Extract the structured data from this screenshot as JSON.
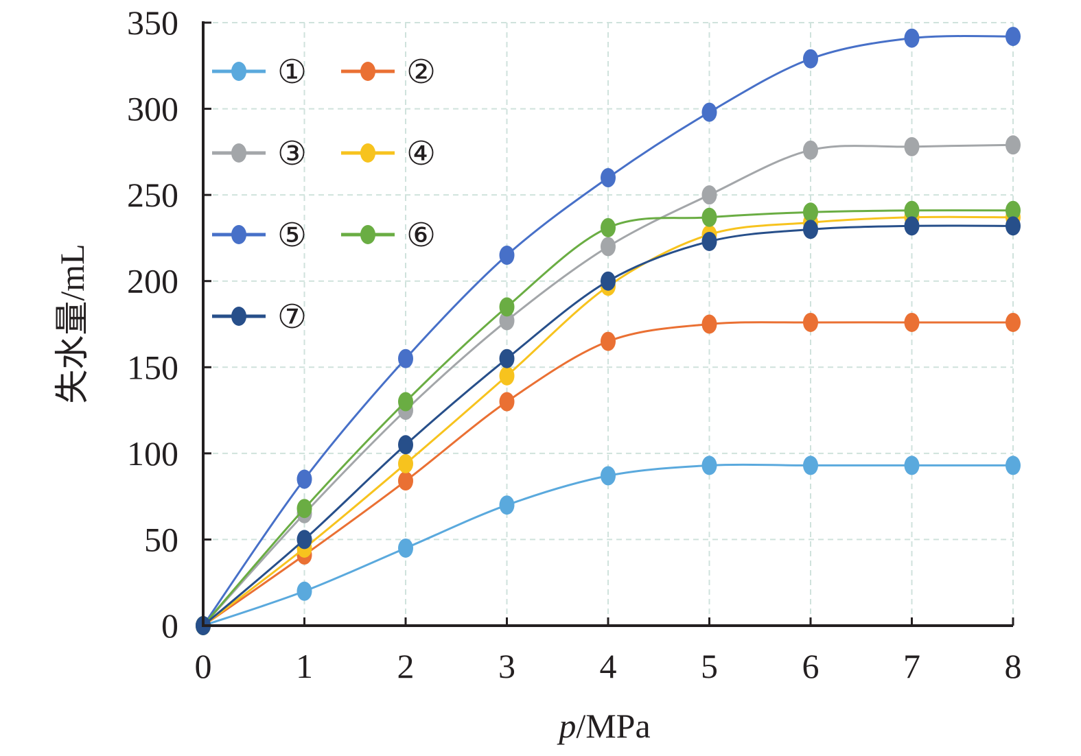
{
  "chart_data": {
    "type": "line",
    "xlabel_italic": "p",
    "xlabel_unit": "/MPa",
    "ylabel": "失水量/mL",
    "xlim": [
      0,
      8
    ],
    "ylim": [
      0,
      350
    ],
    "x_ticks": [
      "0",
      "1",
      "2",
      "3",
      "4",
      "5",
      "6",
      "7",
      "8"
    ],
    "y_ticks": [
      "0",
      "50",
      "100",
      "150",
      "200",
      "250",
      "300",
      "350"
    ],
    "grid": true,
    "legend_position": "top-left",
    "x": [
      0,
      1,
      2,
      3,
      4,
      5,
      6,
      7,
      8
    ],
    "series": [
      {
        "name": "①",
        "color": "#5aa9dd",
        "values": [
          0,
          20,
          45,
          70,
          87,
          93,
          93,
          93,
          93
        ]
      },
      {
        "name": "②",
        "color": "#ea7033",
        "values": [
          0,
          41,
          84,
          130,
          165,
          175,
          176,
          176,
          176
        ]
      },
      {
        "name": "③",
        "color": "#a3a6a9",
        "values": [
          0,
          65,
          125,
          177,
          220,
          250,
          276,
          278,
          279
        ]
      },
      {
        "name": "④",
        "color": "#f7c31e",
        "values": [
          0,
          45,
          94,
          145,
          197,
          227,
          234,
          237,
          237
        ]
      },
      {
        "name": "⑤",
        "color": "#4770c8",
        "values": [
          0,
          85,
          155,
          215,
          260,
          298,
          329,
          341,
          342
        ]
      },
      {
        "name": "⑥",
        "color": "#6aad43",
        "values": [
          0,
          68,
          130,
          185,
          231,
          237,
          240,
          241,
          241
        ]
      },
      {
        "name": "⑦",
        "color": "#274f8a",
        "values": [
          0,
          50,
          105,
          155,
          200,
          223,
          230,
          232,
          232
        ]
      }
    ]
  }
}
